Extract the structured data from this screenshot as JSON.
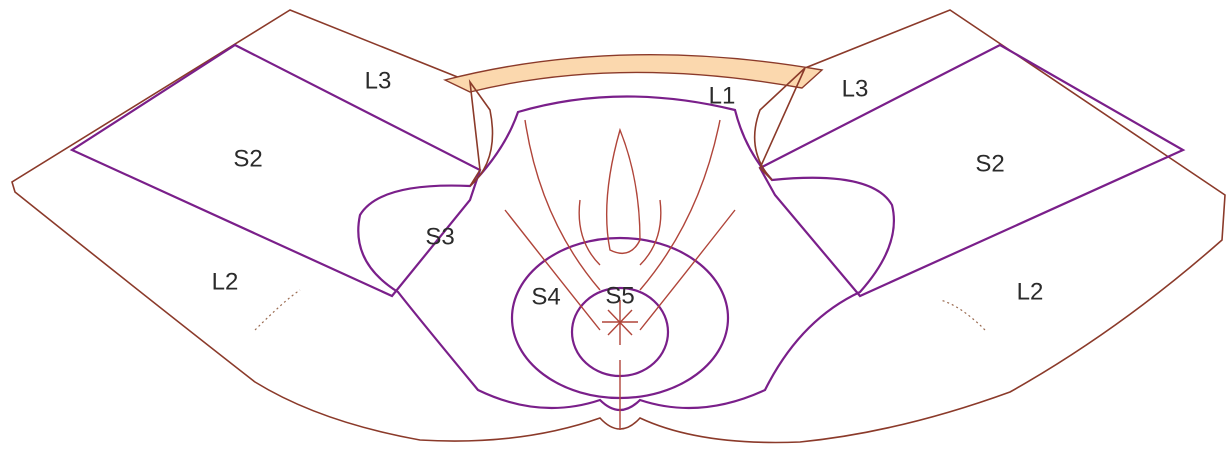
{
  "regions": [
    "L3",
    "L1",
    "L3",
    "S2",
    "S2",
    "S3",
    "L2",
    "L2",
    "S4",
    "S5"
  ]
}
